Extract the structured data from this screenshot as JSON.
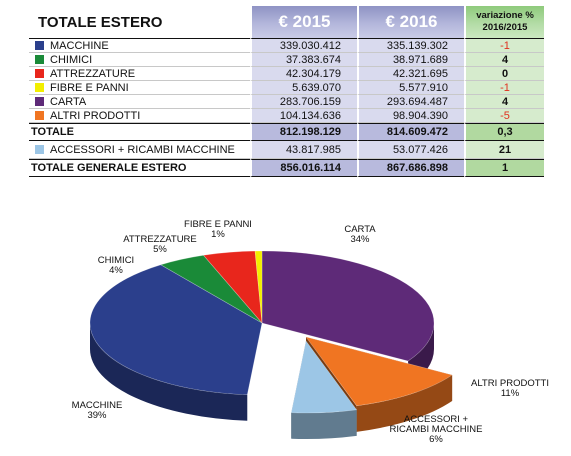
{
  "table": {
    "title": "TOTALE ESTERO",
    "col_2015": "€ 2015",
    "col_2016": "€ 2016",
    "col_var_line1": "variazione %",
    "col_var_line2": "2016/2015",
    "rows": [
      {
        "label": "MACCHINE",
        "color": "#2b3f8c",
        "v2015": "339.030.412",
        "v2016": "335.139.302",
        "var": "-1",
        "neg": true
      },
      {
        "label": "CHIMICI",
        "color": "#1a8a38",
        "v2015": "37.383.674",
        "v2016": "38.971.689",
        "var": "4",
        "neg": false
      },
      {
        "label": "ATTREZZATURE",
        "color": "#e8261c",
        "v2015": "42.304.179",
        "v2016": "42.321.695",
        "var": "0",
        "neg": false
      },
      {
        "label": "FIBRE E PANNI",
        "color": "#f2ee00",
        "v2015": "5.639.070",
        "v2016": "5.577.910",
        "var": "-1",
        "neg": true
      },
      {
        "label": "CARTA",
        "color": "#5e2a78",
        "v2015": "283.706.159",
        "v2016": "293.694.487",
        "var": "4",
        "neg": false
      },
      {
        "label": "ALTRI PRODOTTI",
        "color": "#f07522",
        "v2015": "104.134.636",
        "v2016": "98.904.390",
        "var": "-5",
        "neg": true
      }
    ],
    "total": {
      "label": "TOTALE",
      "v2015": "812.198.129",
      "v2016": "814.609.472",
      "var": "0,3"
    },
    "extra": {
      "label": "ACCESSORI + RICAMBI MACCHINE",
      "color": "#9cc6e6",
      "v2015": "43.817.985",
      "v2016": "53.077.426",
      "var": "21"
    },
    "grand": {
      "label": "TOTALE GENERALE ESTERO",
      "v2015": "856.016.114",
      "v2016": "867.686.898",
      "var": "1"
    }
  },
  "chart_data": {
    "type": "pie",
    "slices": [
      {
        "name": "CARTA",
        "pct_label": "34%",
        "value": 293694487,
        "color": "#5e2a78",
        "exploded": false
      },
      {
        "name": "ALTRI PRODOTTI",
        "pct_label": "11%",
        "value": 98904390,
        "color": "#f07522",
        "exploded": true
      },
      {
        "name": "ACCESSORI + RICAMBI MACCHINE",
        "pct_label": "6%",
        "value": 53077426,
        "color": "#9cc6e6",
        "exploded": true
      },
      {
        "name": "MACCHINE",
        "pct_label": "39%",
        "value": 335139302,
        "color": "#2b3f8c",
        "exploded": false
      },
      {
        "name": "CHIMICI",
        "pct_label": "4%",
        "value": 38971689,
        "color": "#1a8a38",
        "exploded": false
      },
      {
        "name": "ATTREZZATURE",
        "pct_label": "5%",
        "value": 42321695,
        "color": "#e8261c",
        "exploded": false
      },
      {
        "name": "FIBRE E PANNI",
        "pct_label": "1%",
        "value": 5577910,
        "color": "#f2ee00",
        "exploded": false
      }
    ],
    "labels": [
      {
        "lines": [
          "CARTA",
          "34%"
        ]
      },
      {
        "lines": [
          "ALTRI PRODOTTI",
          "11%"
        ]
      },
      {
        "lines": [
          "ACCESSORI +",
          "RICAMBI MACCHINE",
          "6%"
        ]
      },
      {
        "lines": [
          "MACCHINE",
          "39%"
        ]
      },
      {
        "lines": [
          "CHIMICI",
          "4%"
        ]
      },
      {
        "lines": [
          "ATTREZZATURE",
          "5%"
        ]
      },
      {
        "lines": [
          "FIBRE E PANNI",
          "1%"
        ]
      }
    ]
  }
}
